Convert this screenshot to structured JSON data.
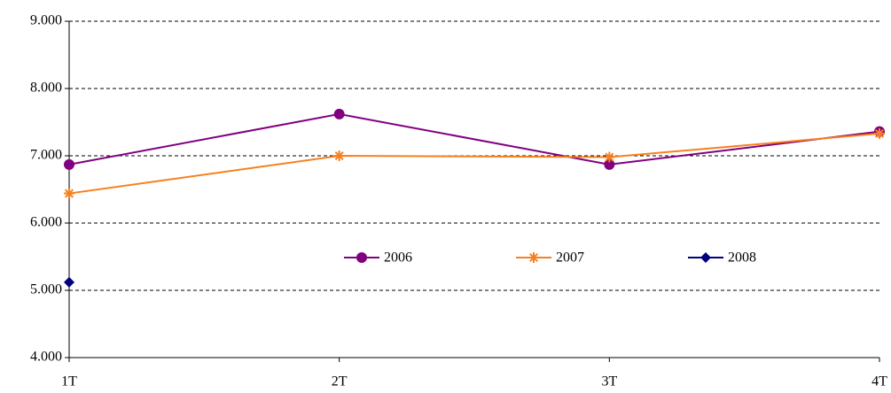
{
  "chart_data": {
    "type": "line",
    "categories": [
      "1T",
      "2T",
      "3T",
      "4T"
    ],
    "series": [
      {
        "name": "2006",
        "color": "#800080",
        "marker": "circle",
        "values": [
          6870,
          7620,
          6870,
          7360
        ]
      },
      {
        "name": "2007",
        "color": "#f7801e",
        "marker": "asterisk",
        "values": [
          6440,
          7000,
          6980,
          7330
        ]
      },
      {
        "name": "2008",
        "color": "#000080",
        "marker": "diamond",
        "values": [
          5120,
          null,
          null,
          null
        ]
      }
    ],
    "ylim": [
      4000,
      9000
    ],
    "yticks": [
      {
        "value": 4000,
        "label": "4.000"
      },
      {
        "value": 5000,
        "label": "5.000"
      },
      {
        "value": 6000,
        "label": "6.000"
      },
      {
        "value": 7000,
        "label": "7.000"
      },
      {
        "value": 8000,
        "label": "8.000"
      },
      {
        "value": 9000,
        "label": "9.000"
      }
    ],
    "grid": true,
    "legend": "inside"
  }
}
